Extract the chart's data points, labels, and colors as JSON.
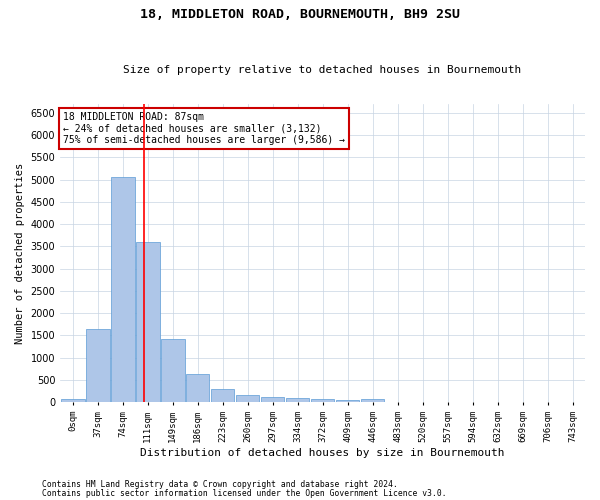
{
  "title": "18, MIDDLETON ROAD, BOURNEMOUTH, BH9 2SU",
  "subtitle": "Size of property relative to detached houses in Bournemouth",
  "xlabel": "Distribution of detached houses by size in Bournemouth",
  "ylabel": "Number of detached properties",
  "bar_color": "#aec6e8",
  "bar_edge_color": "#5b9bd5",
  "categories": [
    "0sqm",
    "37sqm",
    "74sqm",
    "111sqm",
    "149sqm",
    "186sqm",
    "223sqm",
    "260sqm",
    "297sqm",
    "334sqm",
    "372sqm",
    "409sqm",
    "446sqm",
    "483sqm",
    "520sqm",
    "557sqm",
    "594sqm",
    "632sqm",
    "669sqm",
    "706sqm",
    "743sqm"
  ],
  "values": [
    75,
    1650,
    5070,
    3600,
    1420,
    620,
    300,
    155,
    115,
    80,
    60,
    55,
    65,
    0,
    0,
    0,
    0,
    0,
    0,
    0,
    0
  ],
  "ylim": [
    0,
    6700
  ],
  "yticks": [
    0,
    500,
    1000,
    1500,
    2000,
    2500,
    3000,
    3500,
    4000,
    4500,
    5000,
    5500,
    6000,
    6500
  ],
  "annotation_title": "18 MIDDLETON ROAD: 87sqm",
  "annotation_line1": "← 24% of detached houses are smaller (3,132)",
  "annotation_line2": "75% of semi-detached houses are larger (9,586) →",
  "footer1": "Contains HM Land Registry data © Crown copyright and database right 2024.",
  "footer2": "Contains public sector information licensed under the Open Government Licence v3.0.",
  "background_color": "#ffffff",
  "grid_color": "#c8d4e3",
  "annotation_box_color": "#cc0000"
}
